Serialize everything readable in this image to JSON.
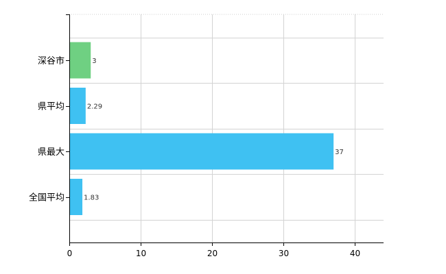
{
  "chart_data": {
    "type": "bar",
    "orientation": "horizontal",
    "categories": [
      "深谷市",
      "県平均",
      "県最大",
      "全国平均"
    ],
    "values": [
      3,
      2.29,
      37,
      1.83
    ],
    "value_labels": [
      "3",
      "2.29",
      "37",
      "1.83"
    ],
    "bar_colors": [
      "#6fd082",
      "#3fc1f2",
      "#3fc1f2",
      "#3fc1f2"
    ],
    "xlim": [
      0,
      44
    ],
    "x_ticks": [
      0,
      10,
      20,
      30,
      40
    ],
    "grid": true,
    "title": "",
    "xlabel": "",
    "ylabel": ""
  }
}
